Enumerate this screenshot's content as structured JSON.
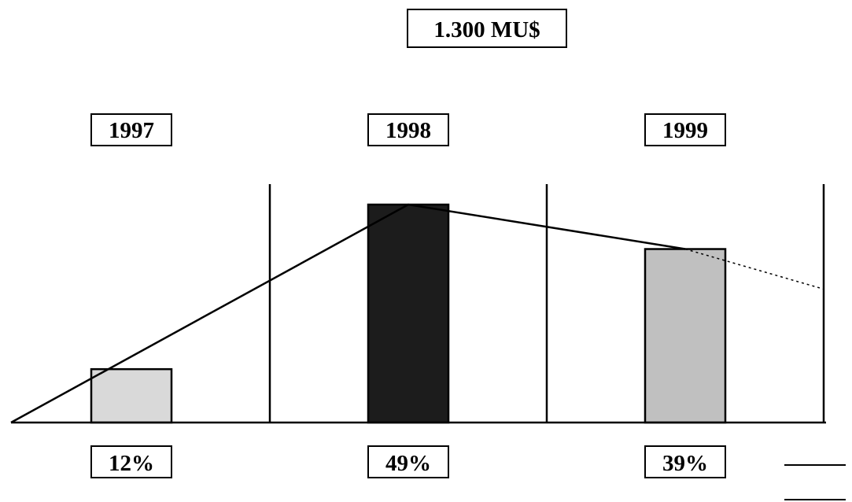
{
  "chart_data": {
    "type": "bar",
    "title": "1.300 MU$",
    "categories": [
      "1997",
      "1998",
      "1999"
    ],
    "values": [
      12,
      49,
      39
    ],
    "value_labels": [
      "12%",
      "49%",
      "39%"
    ],
    "ylim": [
      0,
      53
    ],
    "bar_colors": [
      "#d9d9d9",
      "#1c1c1c",
      "#c0c0c0"
    ],
    "trend_line": {
      "points": [
        {
          "x": "1997",
          "y": 0
        },
        {
          "x": "1998",
          "y": 49
        },
        {
          "x": "1999",
          "y": 39
        }
      ],
      "projection_end": 30
    },
    "grid": false
  }
}
